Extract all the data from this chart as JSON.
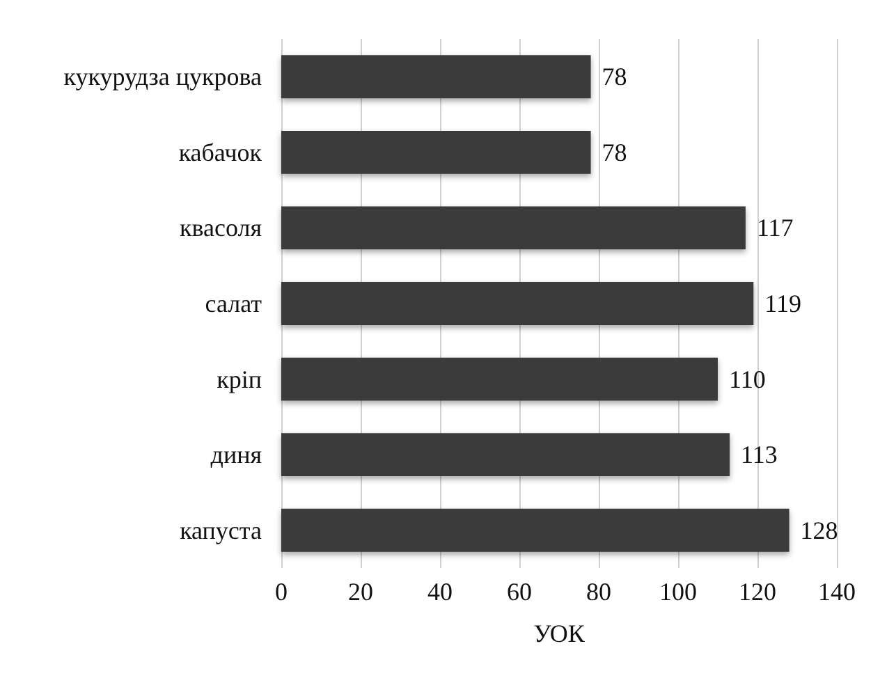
{
  "chart_data": {
    "type": "bar",
    "orientation": "horizontal",
    "xlabel": "УОК",
    "categories": [
      "кукурудза цукрова",
      "кабачок",
      "квасоля",
      "салат",
      "кріп",
      "диня",
      "капуста"
    ],
    "values": [
      78,
      78,
      117,
      119,
      110,
      113,
      128
    ],
    "color": "#3a3a3a",
    "xlim": [
      0,
      140
    ],
    "xticks": [
      0,
      20,
      40,
      60,
      80,
      100,
      120,
      140
    ],
    "grid": "x",
    "data_labels": true
  }
}
